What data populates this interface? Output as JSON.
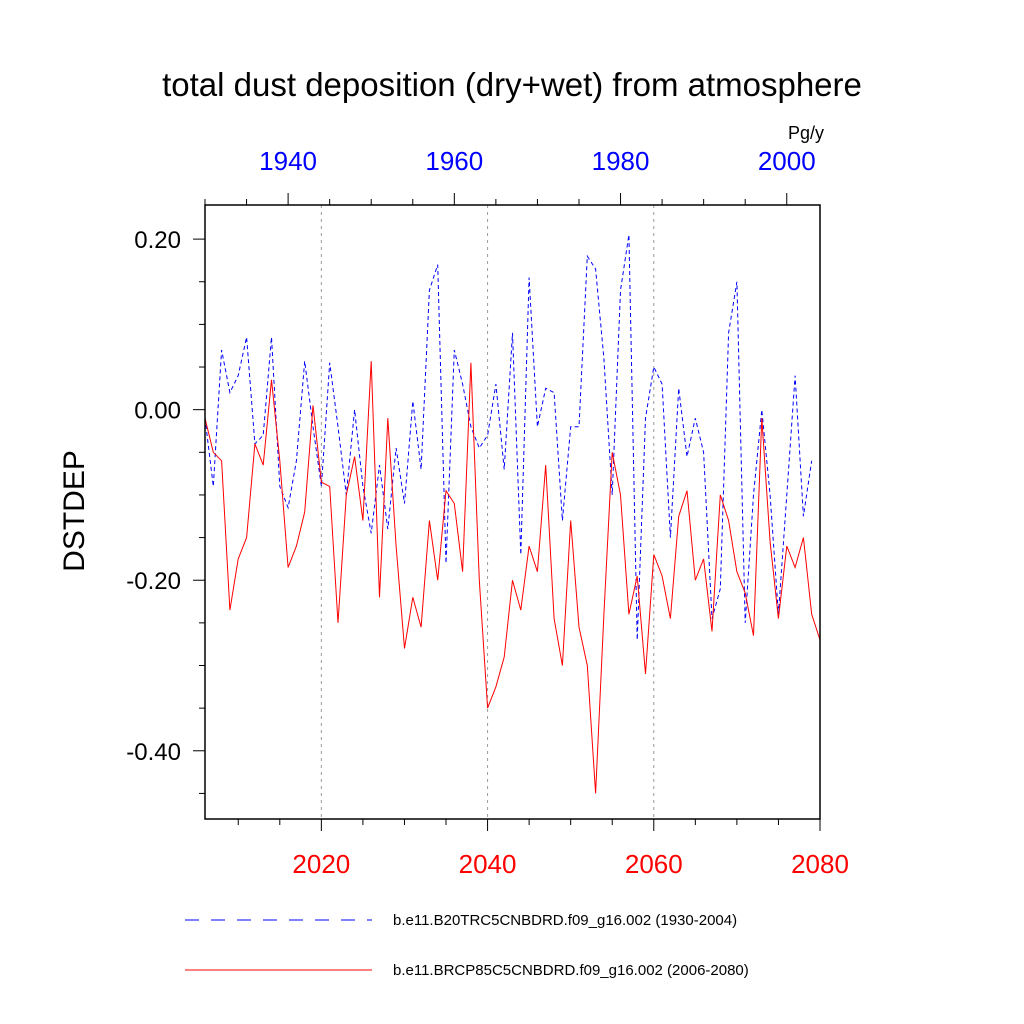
{
  "chart_data": {
    "type": "line",
    "title": "total dust deposition (dry+wet) from atmosphere",
    "ylabel": "DSTDEP",
    "units": "Pg/y",
    "ylim": [
      -0.48,
      0.24
    ],
    "yticks": [
      0.2,
      0.0,
      -0.2,
      -0.4
    ],
    "ytick_labels": [
      "0.20",
      "0.00",
      "-0.20",
      "-0.40"
    ],
    "x_bottom": {
      "range": [
        2006,
        2080
      ],
      "ticks": [
        2020,
        2040,
        2060,
        2080
      ],
      "tick_labels": [
        "2020",
        "2040",
        "2060",
        "2080"
      ],
      "color": "#ff0000"
    },
    "x_top": {
      "range": [
        1930,
        2004
      ],
      "ticks": [
        1940,
        1960,
        1980,
        2000
      ],
      "tick_labels": [
        "1940",
        "1960",
        "1980",
        "2000"
      ],
      "color": "#0000ff"
    },
    "gridlines_x": [
      2020,
      2040,
      2060
    ],
    "series": [
      {
        "name": "b.e11.B20TRC5CNBDRD.f09_g16.002 (1930-2004)",
        "color": "#0000ff",
        "dash": "dashed",
        "axis": "top",
        "x_start": 1930,
        "values": [
          -0.01,
          -0.09,
          0.07,
          0.02,
          0.04,
          0.085,
          -0.04,
          -0.03,
          0.085,
          -0.09,
          -0.115,
          -0.06,
          0.057,
          -0.02,
          -0.09,
          0.055,
          -0.02,
          -0.1,
          0.0,
          -0.09,
          -0.145,
          -0.065,
          -0.14,
          -0.045,
          -0.11,
          0.01,
          -0.07,
          0.14,
          0.17,
          -0.18,
          0.07,
          0.03,
          -0.02,
          -0.045,
          -0.03,
          0.03,
          -0.07,
          0.09,
          -0.17,
          0.155,
          -0.02,
          0.025,
          0.02,
          -0.13,
          -0.02,
          -0.02,
          0.18,
          0.165,
          0.06,
          -0.1,
          0.14,
          0.205,
          -0.27,
          -0.01,
          0.05,
          0.03,
          -0.15,
          0.025,
          -0.055,
          -0.01,
          -0.05,
          -0.245,
          -0.21,
          0.09,
          0.15,
          -0.25,
          -0.1,
          0.0,
          -0.1,
          -0.24,
          -0.1,
          0.04,
          -0.125,
          -0.06
        ]
      },
      {
        "name": "b.e11.BRCP85C5CNBDRD.f09_g16.002 (2006-2080)",
        "color": "#ff0000",
        "dash": "solid",
        "axis": "bottom",
        "x_start": 2006,
        "values": [
          -0.01,
          -0.05,
          -0.06,
          -0.235,
          -0.175,
          -0.15,
          -0.04,
          -0.065,
          0.035,
          -0.06,
          -0.185,
          -0.16,
          -0.12,
          0.005,
          -0.085,
          -0.09,
          -0.25,
          -0.1,
          -0.055,
          -0.13,
          0.057,
          -0.22,
          -0.01,
          -0.16,
          -0.28,
          -0.22,
          -0.255,
          -0.13,
          -0.2,
          -0.095,
          -0.11,
          -0.19,
          0.055,
          -0.2,
          -0.35,
          -0.325,
          -0.29,
          -0.2,
          -0.235,
          -0.16,
          -0.19,
          -0.065,
          -0.245,
          -0.3,
          -0.13,
          -0.255,
          -0.3,
          -0.45,
          -0.24,
          -0.05,
          -0.1,
          -0.24,
          -0.195,
          -0.31,
          -0.17,
          -0.195,
          -0.245,
          -0.125,
          -0.095,
          -0.2,
          -0.175,
          -0.26,
          -0.1,
          -0.13,
          -0.19,
          -0.215,
          -0.265,
          -0.01,
          -0.155,
          -0.245,
          -0.16,
          -0.185,
          -0.15,
          -0.24,
          -0.27
        ]
      }
    ]
  }
}
